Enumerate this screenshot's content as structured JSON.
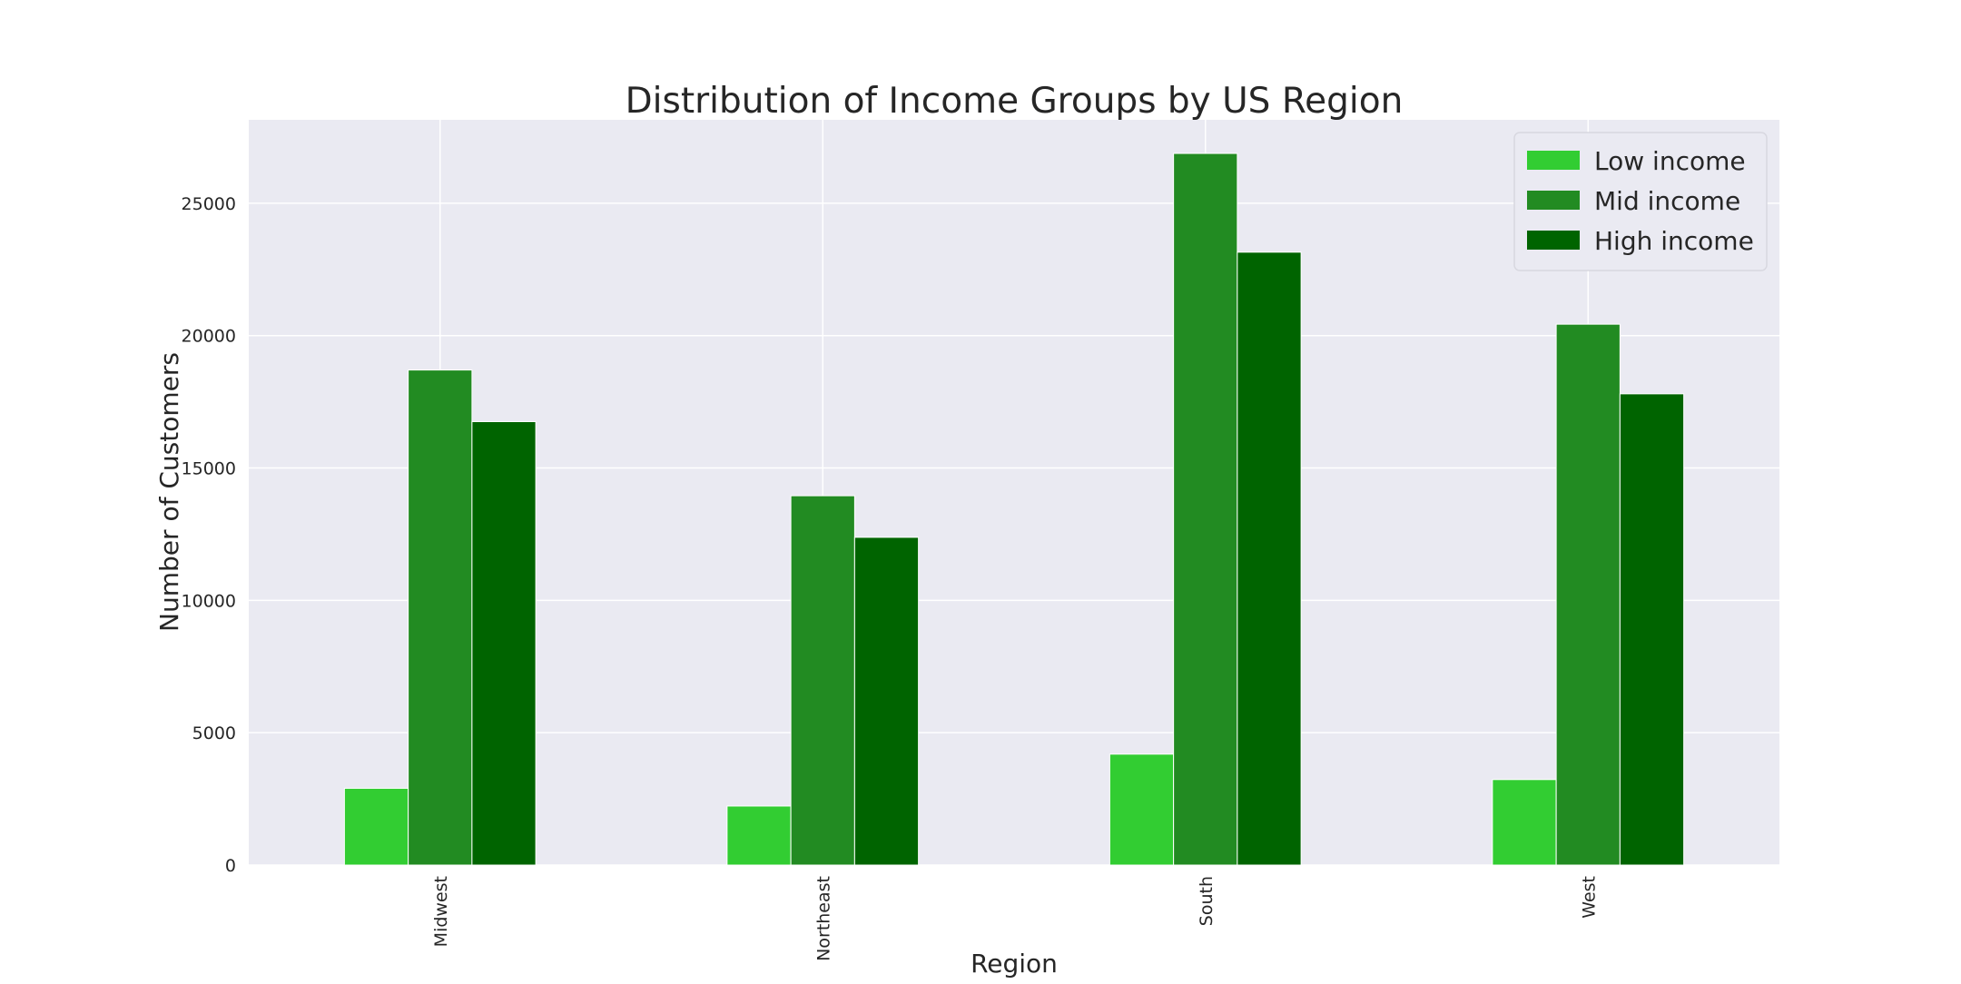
{
  "chart_data": {
    "type": "bar",
    "title": "Distribution of Income Groups by US Region",
    "xlabel": "Region",
    "ylabel": "Number of Customers",
    "categories": [
      "Midwest",
      "Northeast",
      "South",
      "West"
    ],
    "series": [
      {
        "name": "Low income",
        "color": "#32cd32",
        "values": [
          2900,
          2230,
          4190,
          3230
        ]
      },
      {
        "name": "Mid income",
        "color": "#228b22",
        "values": [
          18700,
          13950,
          26880,
          20430
        ]
      },
      {
        "name": "High income",
        "color": "#006400",
        "values": [
          16750,
          12380,
          23150,
          17800
        ]
      }
    ],
    "ylim": [
      0,
      28150
    ],
    "yticks": [
      0,
      5000,
      10000,
      15000,
      20000,
      25000
    ],
    "grid": true,
    "legend_position": "top-right",
    "plot_background": "#eaeaf2",
    "grid_color": "#ffffff"
  }
}
